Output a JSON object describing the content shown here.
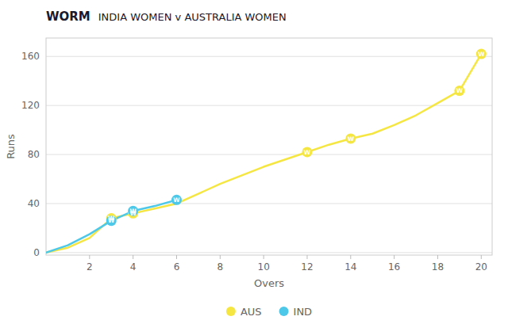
{
  "chart_data": {
    "type": "line",
    "title": "WORM",
    "subtitle": "INDIA WOMEN v AUSTRALIA WOMEN",
    "xlabel": "Overs",
    "ylabel": "Runs",
    "wicket_label": "W",
    "x": [
      0,
      1,
      2,
      3,
      4,
      5,
      6,
      7,
      8,
      9,
      10,
      11,
      12,
      13,
      14,
      15,
      16,
      17,
      18,
      19,
      20
    ],
    "series": [
      {
        "name": "AUS",
        "color": "#f5e642",
        "values": [
          0,
          4,
          12,
          28,
          32,
          36,
          40,
          48,
          56,
          63,
          70,
          76,
          82,
          88,
          93,
          97,
          104,
          112,
          122,
          132,
          162
        ],
        "wicket_overs": [
          3,
          4,
          12,
          14,
          19,
          20
        ],
        "wicket_runs": [
          28,
          32,
          82,
          93,
          132,
          162
        ]
      },
      {
        "name": "IND",
        "color": "#4dc8e8",
        "values": [
          0,
          6,
          15,
          26,
          34,
          38,
          43,
          null,
          null,
          null,
          null,
          null,
          null,
          null,
          null,
          null,
          null,
          null,
          null,
          null,
          null
        ],
        "wicket_overs": [
          3,
          4,
          6
        ],
        "wicket_runs": [
          26,
          34,
          43
        ]
      }
    ],
    "xlim": [
      0,
      20.5
    ],
    "ylim": [
      -2,
      175
    ],
    "xticks": [
      2,
      4,
      6,
      8,
      10,
      12,
      14,
      16,
      18,
      20
    ],
    "yticks": [
      0,
      40,
      80,
      120,
      160
    ],
    "grid": true,
    "legend": "bottom"
  }
}
